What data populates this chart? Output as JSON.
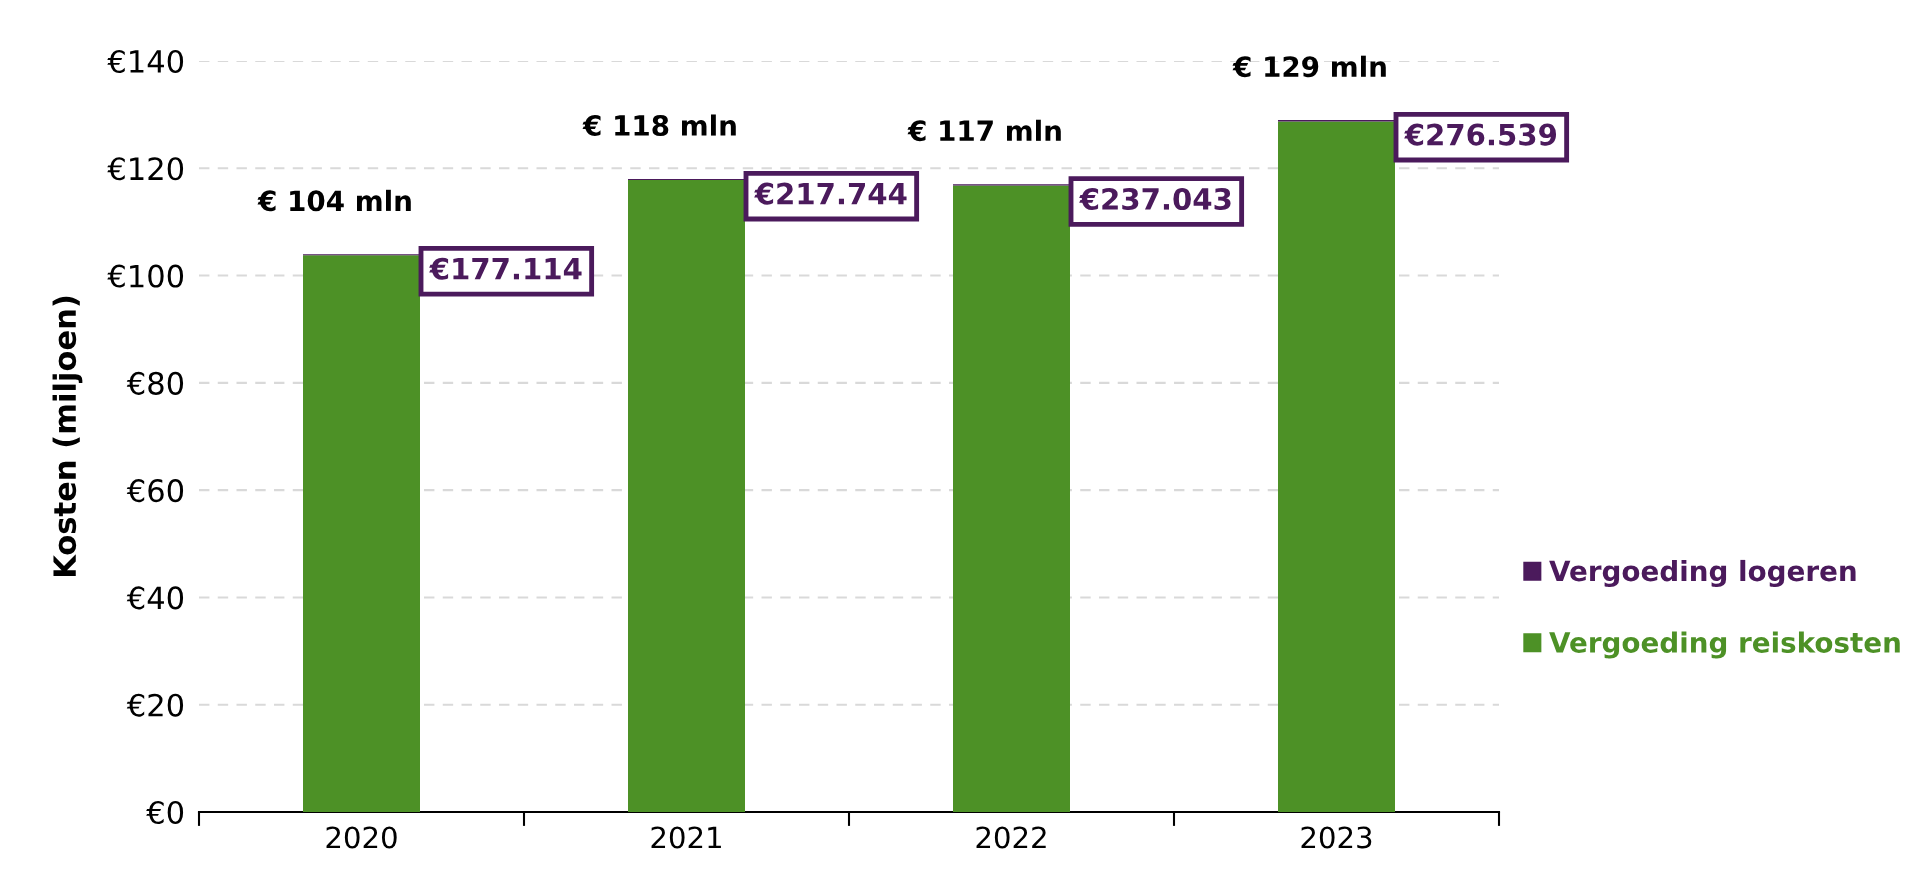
{
  "chart_data": {
    "type": "bar",
    "stacked": true,
    "ylabel": "Kosten (miljoen)",
    "categories": [
      "2020",
      "2021",
      "2022",
      "2023"
    ],
    "series": [
      {
        "name": "Vergoeding reiskosten",
        "color": "#4d9126",
        "values": [
          103.8,
          117.8,
          116.8,
          128.7
        ]
      },
      {
        "name": "Vergoeding logeren",
        "color": "#4b1a5c",
        "values": [
          0.18,
          0.22,
          0.24,
          0.28
        ]
      }
    ],
    "annotations": [
      {
        "text": "€177.114",
        "x": "2020",
        "y": 104
      },
      {
        "text": "€217.744",
        "x": "2021",
        "y": 118
      },
      {
        "text": "€237.043",
        "x": "2022",
        "y": 117
      },
      {
        "text": "€276.539",
        "x": "2023",
        "y": 129
      }
    ],
    "totals": [
      "€ 104 mln",
      "€ 118 mln",
      "€ 117 mln",
      "€ 129 mln"
    ],
    "ylim": [
      0,
      140
    ],
    "yticks": [
      {
        "value": 0,
        "label": "€0"
      },
      {
        "value": 20,
        "label": "€20"
      },
      {
        "value": 40,
        "label": "€40"
      },
      {
        "value": 60,
        "label": "€60"
      },
      {
        "value": 80,
        "label": "€80"
      },
      {
        "value": 100,
        "label": "€100"
      },
      {
        "value": 120,
        "label": "€120"
      },
      {
        "value": 140,
        "label": "€140"
      }
    ],
    "grid": "y",
    "legend": "right"
  }
}
